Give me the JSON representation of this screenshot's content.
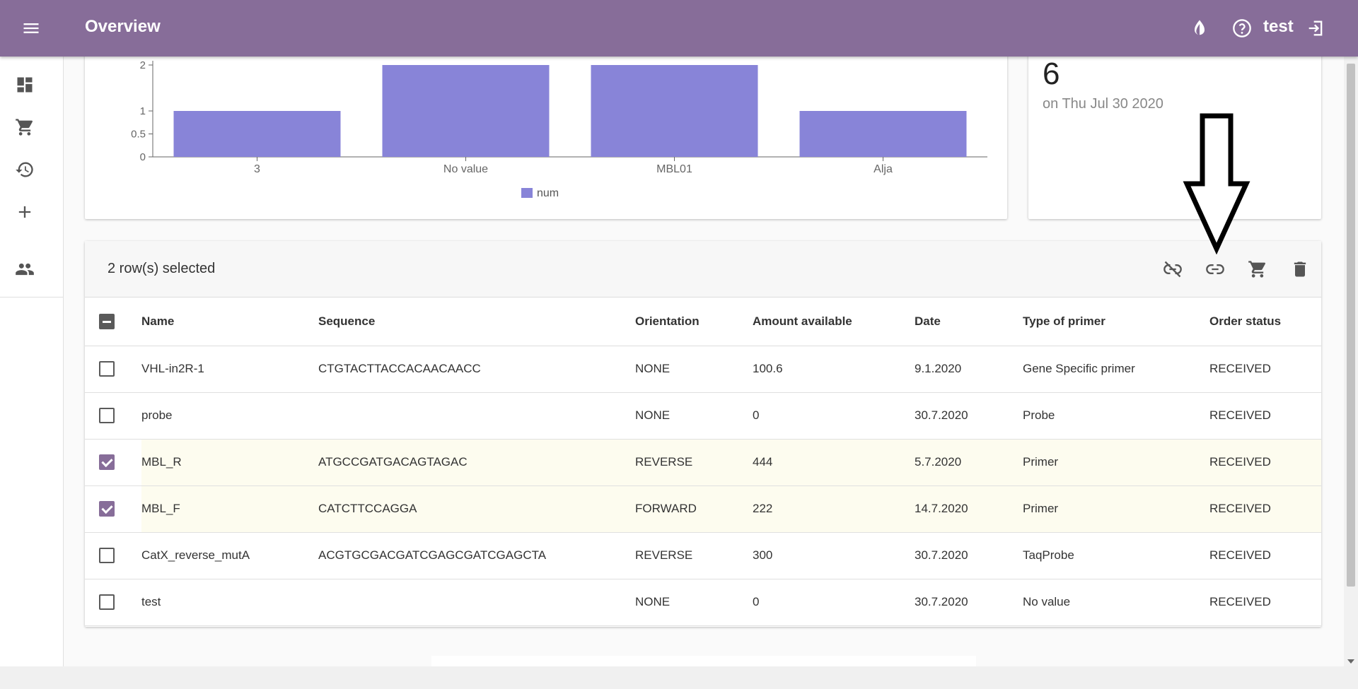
{
  "appbar": {
    "title": "Overview",
    "user": "test"
  },
  "sidebar": {
    "items": [
      {
        "name": "dashboard-icon"
      },
      {
        "name": "cart-icon"
      },
      {
        "name": "history-icon"
      },
      {
        "name": "add-icon"
      },
      {
        "name": "people-icon"
      }
    ]
  },
  "chart_data": {
    "type": "bar",
    "categories": [
      "3",
      "No value",
      "MBL01",
      "Alja"
    ],
    "series": [
      {
        "name": "num",
        "values": [
          1,
          2,
          2,
          1
        ],
        "color": "#8884d8"
      }
    ],
    "yticks": [
      "0",
      "0.5",
      "1",
      "2"
    ],
    "ylim": [
      0,
      2
    ]
  },
  "stat": {
    "value": "6",
    "date": "on Thu Jul 30 2020"
  },
  "toolbar": {
    "selected_text": "2 row(s) selected"
  },
  "table": {
    "columns": [
      "Name",
      "Sequence",
      "Orientation",
      "Amount available",
      "Date",
      "Type of primer",
      "Order status"
    ],
    "rows": [
      {
        "checked": false,
        "cells": [
          "VHL-in2R-1",
          "CTGTACTTACCACAACAACC",
          "NONE",
          "100.6",
          "9.1.2020",
          "Gene Specific primer",
          "RECEIVED"
        ]
      },
      {
        "checked": false,
        "cells": [
          "probe",
          "",
          "NONE",
          "0",
          "30.7.2020",
          "Probe",
          "RECEIVED"
        ]
      },
      {
        "checked": true,
        "cells": [
          "MBL_R",
          "ATGCCGATGACAGTAGAC",
          "REVERSE",
          "444",
          "5.7.2020",
          "Primer",
          "RECEIVED"
        ]
      },
      {
        "checked": true,
        "cells": [
          "MBL_F",
          "CATCTTCCAGGA",
          "FORWARD",
          "222",
          "14.7.2020",
          "Primer",
          "RECEIVED"
        ]
      },
      {
        "checked": false,
        "cells": [
          "CatX_reverse_mutA",
          "ACGTGCGACGATCGAGCGATCGAGCTA",
          "REVERSE",
          "300",
          "30.7.2020",
          "TaqProbe",
          "RECEIVED"
        ]
      },
      {
        "checked": false,
        "cells": [
          "test",
          "",
          "NONE",
          "0",
          "30.7.2020",
          "No value",
          "RECEIVED"
        ]
      }
    ]
  },
  "colors": {
    "appbar": "#876d99",
    "bar": "#8884d8",
    "checkbox_checked": "#876d99",
    "selected_row": "#fdfcef"
  }
}
